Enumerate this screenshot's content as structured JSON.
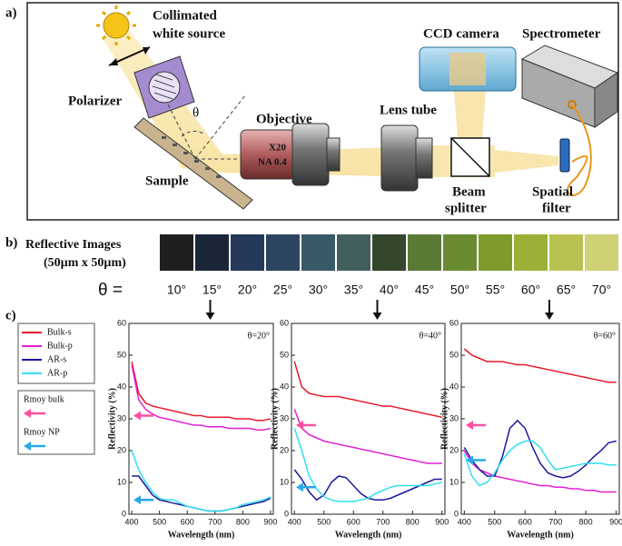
{
  "diagram": {
    "panel_label": "a)",
    "source": [
      "Collimated",
      "white source"
    ],
    "polarizer": "Polarizer",
    "theta": "θ",
    "sample": "Sample",
    "objective": "Objective",
    "magnification": "X20",
    "aperture": "NA 0.4",
    "lens_tube": "Lens tube",
    "camera": "CCD camera",
    "spectrometer": "Spectrometer",
    "beam_splitter": [
      "Beam",
      "splitter"
    ],
    "spatial_filter": [
      "Spatial",
      "filter"
    ]
  },
  "reflective_images": {
    "panel_label": "b)",
    "title_lines": [
      "Reflective Images",
      "(50µm x 50µm)"
    ],
    "theta_label": "θ =",
    "images": [
      {
        "angle": "10°",
        "color": "#1f1f21"
      },
      {
        "angle": "15°",
        "color": "#1a2638"
      },
      {
        "angle": "20°",
        "color": "#26395a"
      },
      {
        "angle": "25°",
        "color": "#2c4560"
      },
      {
        "angle": "30°",
        "color": "#3a5966"
      },
      {
        "angle": "35°",
        "color": "#435f5d"
      },
      {
        "angle": "40°",
        "color": "#34462b"
      },
      {
        "angle": "45°",
        "color": "#5a7a36"
      },
      {
        "angle": "50°",
        "color": "#6b8b30"
      },
      {
        "angle": "55°",
        "color": "#7f9b2d"
      },
      {
        "angle": "60°",
        "color": "#9bb037"
      },
      {
        "angle": "65°",
        "color": "#b9c250"
      },
      {
        "angle": "70°",
        "color": "#cfd174"
      }
    ]
  },
  "panel_c_label": "c)",
  "legend": [
    {
      "name": "Bulk-s",
      "color": "#e8192c"
    },
    {
      "name": "Bulk-p",
      "color": "#e020d0"
    },
    {
      "name": "AR-s",
      "color": "#1a1a9c"
    },
    {
      "name": "AR-p",
      "color": "#30e0f0"
    }
  ],
  "rmoy": [
    {
      "name": "Rmoy bulk",
      "color": "#ff4fa0"
    },
    {
      "name": "Rmoy NP",
      "color": "#2aa7e8"
    }
  ],
  "chart_data": [
    {
      "type": "line",
      "annotation": "θ=20°",
      "xlabel": "Wavelength (nm)",
      "ylabel": "Reflectivity (%)",
      "xlim": [
        390,
        910
      ],
      "ylim": [
        0,
        60
      ],
      "xticks": [
        400,
        500,
        600,
        700,
        800,
        900
      ],
      "yticks": [
        0,
        10,
        20,
        30,
        40,
        50,
        60
      ],
      "x": [
        400,
        425,
        450,
        475,
        500,
        525,
        550,
        575,
        600,
        625,
        650,
        675,
        700,
        725,
        750,
        775,
        800,
        825,
        850,
        875,
        900
      ],
      "series": [
        {
          "values": [
            48,
            38,
            35,
            34,
            33.5,
            33,
            32.5,
            32,
            31.5,
            31,
            31,
            30.5,
            30.5,
            30.5,
            30.5,
            30,
            30,
            30,
            29.5,
            29.5,
            30
          ]
        },
        {
          "values": [
            47,
            36,
            33,
            31.5,
            30.5,
            30,
            29.5,
            29,
            28.5,
            28,
            28,
            27.5,
            27.5,
            27.5,
            27,
            27,
            27,
            27,
            26.5,
            26.5,
            27
          ]
        },
        {
          "values": [
            12,
            12,
            9,
            6,
            4.5,
            4,
            3.5,
            3,
            2.5,
            2,
            1.5,
            1,
            1,
            1,
            1.5,
            2,
            2.5,
            3,
            3.5,
            4,
            5
          ]
        },
        {
          "values": [
            20,
            14,
            10,
            7,
            5,
            4.5,
            4.5,
            3.5,
            2.5,
            2,
            1.5,
            1,
            1,
            1,
            1.5,
            2,
            3,
            3.5,
            4,
            4.5,
            5.5
          ]
        }
      ],
      "arrows": [
        31,
        4.5
      ]
    },
    {
      "type": "line",
      "annotation": "θ=40°",
      "xlabel": "Wavelength (nm)",
      "ylabel": "Reflectivity (%)",
      "xlim": [
        390,
        910
      ],
      "ylim": [
        0,
        60
      ],
      "xticks": [
        400,
        500,
        600,
        700,
        800,
        900
      ],
      "yticks": [
        0,
        10,
        20,
        30,
        40,
        50,
        60
      ],
      "x": [
        400,
        425,
        450,
        475,
        500,
        525,
        550,
        575,
        600,
        625,
        650,
        675,
        700,
        725,
        750,
        775,
        800,
        825,
        850,
        875,
        900
      ],
      "series": [
        {
          "values": [
            48,
            40,
            38,
            37.5,
            37,
            37,
            37,
            36.5,
            36,
            35.5,
            35,
            34.5,
            34,
            34,
            33.5,
            33,
            32.5,
            32,
            31.5,
            31,
            30.5
          ]
        },
        {
          "values": [
            33,
            27,
            25,
            24,
            23,
            22.5,
            22,
            21.5,
            21,
            20.5,
            20,
            19.5,
            19,
            18.5,
            18,
            17.5,
            17,
            16.5,
            16,
            16,
            16
          ]
        },
        {
          "values": [
            14,
            11,
            7,
            4.5,
            6,
            10,
            12,
            11.5,
            9,
            6.5,
            5,
            4.5,
            4.5,
            5,
            6,
            7,
            8,
            9,
            10,
            11,
            11
          ]
        },
        {
          "values": [
            27,
            20,
            12,
            8,
            5.5,
            4.5,
            4,
            4,
            4,
            4.5,
            5,
            6.5,
            7.5,
            8.5,
            9,
            9,
            9,
            9,
            9,
            9.5,
            10
          ]
        }
      ],
      "arrows": [
        28,
        8.5
      ]
    },
    {
      "type": "line",
      "annotation": "θ=60°",
      "xlabel": "Wavelength (nm)",
      "ylabel": "Reflectivity (%)",
      "xlim": [
        390,
        910
      ],
      "ylim": [
        0,
        60
      ],
      "xticks": [
        400,
        500,
        600,
        700,
        800,
        900
      ],
      "yticks": [
        0,
        10,
        20,
        30,
        40,
        50,
        60
      ],
      "x": [
        400,
        425,
        450,
        475,
        500,
        525,
        550,
        575,
        600,
        625,
        650,
        675,
        700,
        725,
        750,
        775,
        800,
        825,
        850,
        875,
        900
      ],
      "series": [
        {
          "values": [
            52,
            50,
            49,
            48,
            48,
            48,
            47.5,
            47,
            47,
            46.5,
            46,
            45.5,
            45,
            44.5,
            44,
            43.5,
            43,
            42.5,
            42,
            41.5,
            41.5
          ]
        },
        {
          "values": [
            20,
            16,
            14,
            13,
            12,
            11.5,
            11,
            10.5,
            10,
            9.5,
            9,
            9,
            8.5,
            8.5,
            8,
            8,
            7.5,
            7.5,
            7,
            7,
            7
          ]
        },
        {
          "values": [
            21,
            17,
            14,
            12,
            12,
            18,
            27,
            29.5,
            27,
            21,
            16,
            13,
            12,
            11.5,
            12,
            13.5,
            15.5,
            18,
            20,
            22.5,
            23
          ]
        },
        {
          "values": [
            19,
            12,
            9,
            10,
            13,
            17,
            20,
            22,
            23,
            23,
            21,
            17,
            14,
            14.5,
            15,
            15.5,
            16,
            16,
            16,
            15.5,
            15.5
          ]
        }
      ],
      "arrows": [
        28,
        17
      ]
    }
  ]
}
